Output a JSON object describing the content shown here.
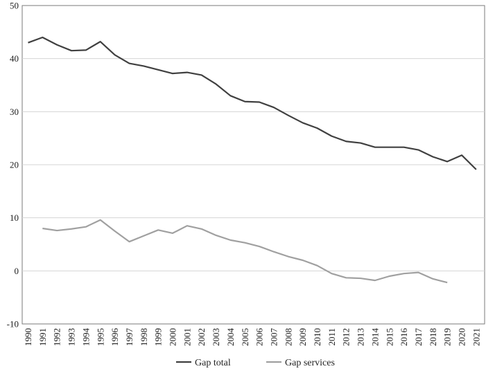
{
  "chart_data": {
    "type": "line",
    "title": "",
    "xlabel": "",
    "ylabel": "",
    "ylim": [
      -10,
      50
    ],
    "yticks": [
      -10,
      0,
      10,
      20,
      30,
      40,
      50
    ],
    "grid": "horizontal",
    "legend_position": "bottom",
    "x": [
      1990,
      1991,
      1992,
      1993,
      1994,
      1995,
      1996,
      1997,
      1998,
      1999,
      2000,
      2001,
      2002,
      2003,
      2004,
      2005,
      2006,
      2007,
      2008,
      2009,
      2010,
      2011,
      2012,
      2013,
      2014,
      2015,
      2016,
      2017,
      2018,
      2019,
      2020,
      2021
    ],
    "series": [
      {
        "name": "Gap total",
        "color": "#404040",
        "values": [
          43.0,
          44.0,
          42.6,
          41.5,
          41.6,
          43.2,
          40.7,
          39.1,
          38.6,
          37.9,
          37.2,
          37.4,
          36.9,
          35.2,
          33.0,
          31.9,
          31.8,
          30.8,
          29.3,
          27.9,
          26.9,
          25.4,
          24.4,
          24.1,
          23.3,
          23.3,
          23.3,
          22.8,
          21.5,
          20.6,
          21.8,
          19.1
        ]
      },
      {
        "name": "Gap services",
        "color": "#a0a0a0",
        "values": [
          null,
          8.0,
          7.6,
          7.9,
          8.3,
          9.6,
          7.5,
          5.5,
          6.6,
          7.7,
          7.1,
          8.5,
          7.9,
          6.7,
          5.8,
          5.3,
          4.6,
          3.6,
          2.7,
          2.0,
          1.0,
          -0.5,
          -1.3,
          -1.4,
          -1.8,
          -1.0,
          -0.5,
          -0.3,
          -1.5,
          -2.2,
          null,
          null
        ]
      }
    ]
  }
}
